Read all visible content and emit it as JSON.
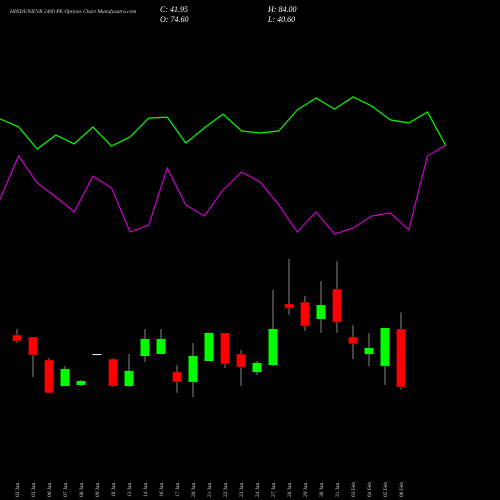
{
  "chart_data": {
    "type": "candlestick",
    "title": "HINDUNILVR 2400 PE Options Chart Munafasutra.com",
    "info": {
      "close": "C: 41.95",
      "high": "H: 84.00",
      "open": "O: 74.60",
      "low": "L: 40.60"
    },
    "categories": [
      "02 Jan",
      "03 Jan",
      "06 Jan",
      "07 Jan",
      "08 Jan",
      "09 Jan",
      "10 Jan",
      "13 Jan",
      "14 Jan",
      "16 Jan",
      "17 Jan",
      "20 Jan",
      "21 Jan",
      "22 Jan",
      "23 Jan",
      "24 Jan",
      "27 Jan",
      "28 Jan",
      "29 Jan",
      "30 Jan",
      "31 Jan",
      "03 Feb",
      "04 Feb",
      "05 Feb",
      "06 Feb"
    ],
    "open": [
      71.2,
      70.1,
      57.15,
      42.5,
      43.1,
      60.5,
      57.7,
      42.5,
      59.4,
      60.5,
      50.4,
      44.8,
      56.6,
      72.4,
      60.5,
      50.4,
      54.3,
      88.7,
      89.8,
      80.2,
      97.1,
      70.1,
      60.5,
      53.8,
      74.6
    ],
    "high": [
      74.6,
      70.1,
      58.3,
      53.8,
      45.9,
      60.5,
      58.3,
      60.5,
      74.6,
      74.6,
      54.3,
      66.7,
      72.4,
      72.4,
      62.8,
      56.6,
      96.6,
      114.0,
      93.2,
      101.6,
      112.9,
      76.9,
      72.4,
      75.2,
      84.0
    ],
    "low": [
      66.7,
      47.6,
      38.6,
      42.5,
      42.5,
      60.5,
      41.95,
      41.95,
      56.0,
      60.5,
      38.6,
      36.3,
      56.6,
      52.6,
      42.5,
      48.7,
      53.8,
      82.5,
      73.5,
      72.4,
      72.4,
      57.7,
      53.8,
      43.1,
      40.6
    ],
    "close": [
      67.8,
      59.97,
      38.6,
      52.1,
      45.3,
      60.5,
      42.5,
      50.96,
      68.97,
      68.97,
      44.8,
      59.4,
      72.4,
      54.9,
      53.2,
      55.5,
      74.6,
      86.4,
      76.3,
      88.1,
      78.5,
      66.2,
      63.9,
      75.2,
      41.95
    ],
    "ylim": [
      30,
      120
    ],
    "up_color": "#00ff00",
    "down_color": "#ff0000",
    "lines": {
      "ylim": [
        0,
        100
      ],
      "series": [
        {
          "color": "#00ff00",
          "values": [
            77.1,
            72.4,
            59.4,
            67.6,
            62.4,
            72.4,
            61.2,
            66.5,
            77.6,
            78.2,
            62.9,
            71.8,
            80,
            70,
            68.8,
            70,
            82.4,
            89.4,
            82.9,
            90,
            84.7,
            76.5,
            74.7,
            81.2,
            61.2
          ]
        },
        {
          "color": "#cc00cc",
          "values": [
            30,
            55.3,
            39.4,
            31.2,
            22.4,
            43.5,
            36.5,
            10.6,
            14.7,
            48.2,
            26.5,
            20,
            35.3,
            45.9,
            40,
            26.5,
            10.6,
            22.4,
            9.4,
            12.9,
            20,
            21.8,
            11.8,
            55.3,
            61.8
          ]
        }
      ]
    }
  }
}
